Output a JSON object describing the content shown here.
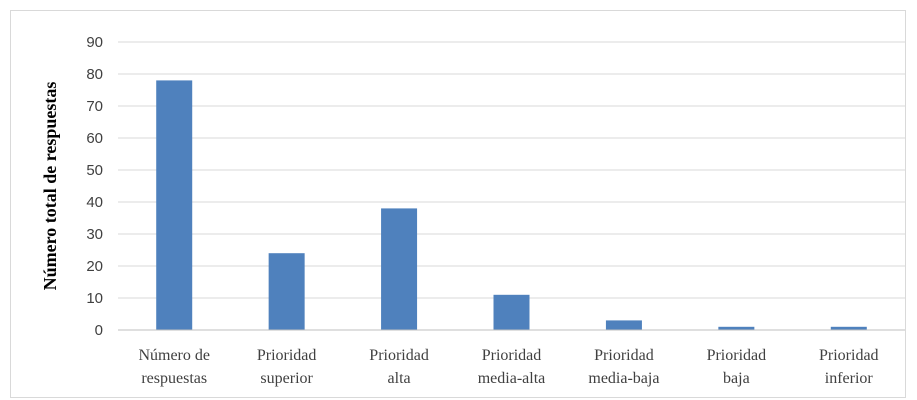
{
  "chart_data": {
    "type": "bar",
    "ylabel": "Número total de respuestas",
    "xlabel": "",
    "title": "",
    "ylim": [
      0,
      90
    ],
    "yticks": [
      0,
      10,
      20,
      30,
      40,
      50,
      60,
      70,
      80,
      90
    ],
    "grid": true,
    "legend": "none",
    "bar_color": "#4f81bd",
    "grid_color": "#d9d9d9",
    "categories": [
      [
        "Número de",
        "respuestas"
      ],
      [
        "Prioridad",
        "superior"
      ],
      [
        "Prioridad",
        "alta"
      ],
      [
        "Prioridad",
        "media-alta"
      ],
      [
        "Prioridad",
        "media-baja"
      ],
      [
        "Prioridad",
        "baja"
      ],
      [
        "Prioridad",
        "inferior"
      ]
    ],
    "values": [
      78,
      24,
      38,
      11,
      3,
      1,
      1
    ]
  }
}
